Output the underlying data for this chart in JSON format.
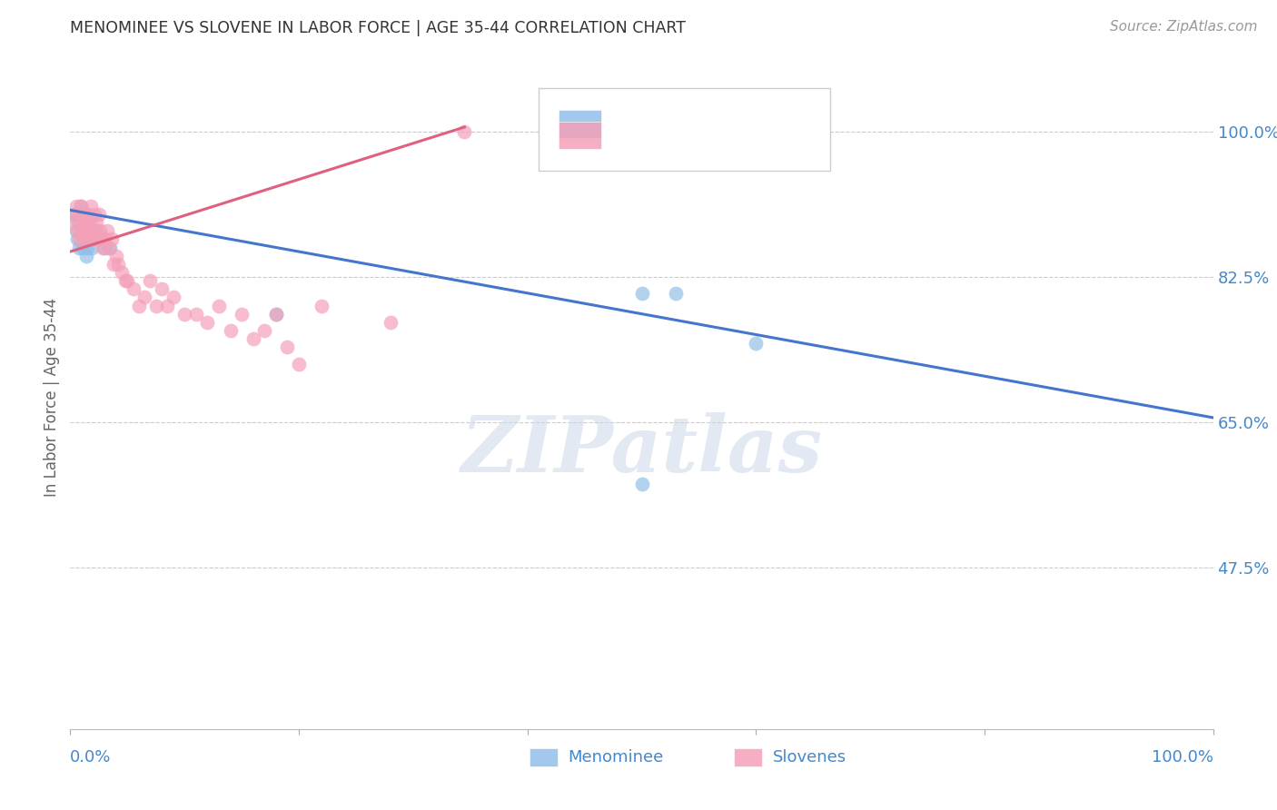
{
  "title": "MENOMINEE VS SLOVENE IN LABOR FORCE | AGE 35-44 CORRELATION CHART",
  "source": "Source: ZipAtlas.com",
  "ylabel": "In Labor Force | Age 35-44",
  "ytick_labels": [
    "47.5%",
    "65.0%",
    "82.5%",
    "100.0%"
  ],
  "ytick_values": [
    0.475,
    0.65,
    0.825,
    1.0
  ],
  "xlim": [
    0.0,
    1.0
  ],
  "ylim": [
    0.28,
    1.08
  ],
  "watermark_text": "ZIPatlas",
  "menominee_color": "#92bfe8",
  "slovene_color": "#f4a0b8",
  "menominee_x": [
    0.003,
    0.005,
    0.006,
    0.007,
    0.008,
    0.009,
    0.01,
    0.011,
    0.012,
    0.013,
    0.014,
    0.015,
    0.016,
    0.018,
    0.019,
    0.02,
    0.022,
    0.025,
    0.03,
    0.035,
    0.18,
    0.5,
    0.53,
    0.6,
    0.5
  ],
  "menominee_y": [
    0.9,
    0.88,
    0.87,
    0.89,
    0.86,
    0.91,
    0.88,
    0.86,
    0.87,
    0.88,
    0.85,
    0.86,
    0.88,
    0.87,
    0.86,
    0.87,
    0.88,
    0.87,
    0.86,
    0.86,
    0.78,
    0.805,
    0.805,
    0.745,
    0.575
  ],
  "slovene_x": [
    0.003,
    0.004,
    0.005,
    0.006,
    0.007,
    0.008,
    0.009,
    0.009,
    0.01,
    0.011,
    0.012,
    0.013,
    0.013,
    0.014,
    0.015,
    0.015,
    0.016,
    0.017,
    0.018,
    0.019,
    0.02,
    0.021,
    0.022,
    0.023,
    0.024,
    0.025,
    0.026,
    0.027,
    0.028,
    0.03,
    0.032,
    0.034,
    0.036,
    0.038,
    0.04,
    0.042,
    0.045,
    0.048,
    0.05,
    0.055,
    0.06,
    0.065,
    0.07,
    0.075,
    0.08,
    0.085,
    0.09,
    0.1,
    0.11,
    0.12,
    0.13,
    0.14,
    0.15,
    0.16,
    0.17,
    0.18,
    0.19,
    0.2,
    0.22,
    0.28,
    0.345
  ],
  "slovene_y": [
    0.89,
    0.9,
    0.91,
    0.88,
    0.9,
    0.87,
    0.9,
    0.91,
    0.88,
    0.89,
    0.87,
    0.9,
    0.88,
    0.89,
    0.88,
    0.9,
    0.87,
    0.89,
    0.91,
    0.88,
    0.87,
    0.9,
    0.88,
    0.89,
    0.87,
    0.9,
    0.88,
    0.87,
    0.86,
    0.87,
    0.88,
    0.86,
    0.87,
    0.84,
    0.85,
    0.84,
    0.83,
    0.82,
    0.82,
    0.81,
    0.79,
    0.8,
    0.82,
    0.79,
    0.81,
    0.79,
    0.8,
    0.78,
    0.78,
    0.77,
    0.79,
    0.76,
    0.78,
    0.75,
    0.76,
    0.78,
    0.74,
    0.72,
    0.79,
    0.77,
    1.0
  ],
  "blue_line_x": [
    0.0,
    1.0
  ],
  "blue_line_y": [
    0.905,
    0.655
  ],
  "pink_line_x": [
    0.0,
    0.345
  ],
  "pink_line_y": [
    0.855,
    1.005
  ],
  "background_color": "#ffffff",
  "grid_color": "#cccccc",
  "title_color": "#333333",
  "axis_label_color": "#666666",
  "tick_color": "#4488cc",
  "bottom_tick_labels": [
    "0.0%",
    "100.0%"
  ],
  "bottom_legend_items": [
    {
      "label": "Menominee",
      "color": "#92bfe8"
    },
    {
      "label": "Slovenes",
      "color": "#f4a0b8"
    }
  ]
}
